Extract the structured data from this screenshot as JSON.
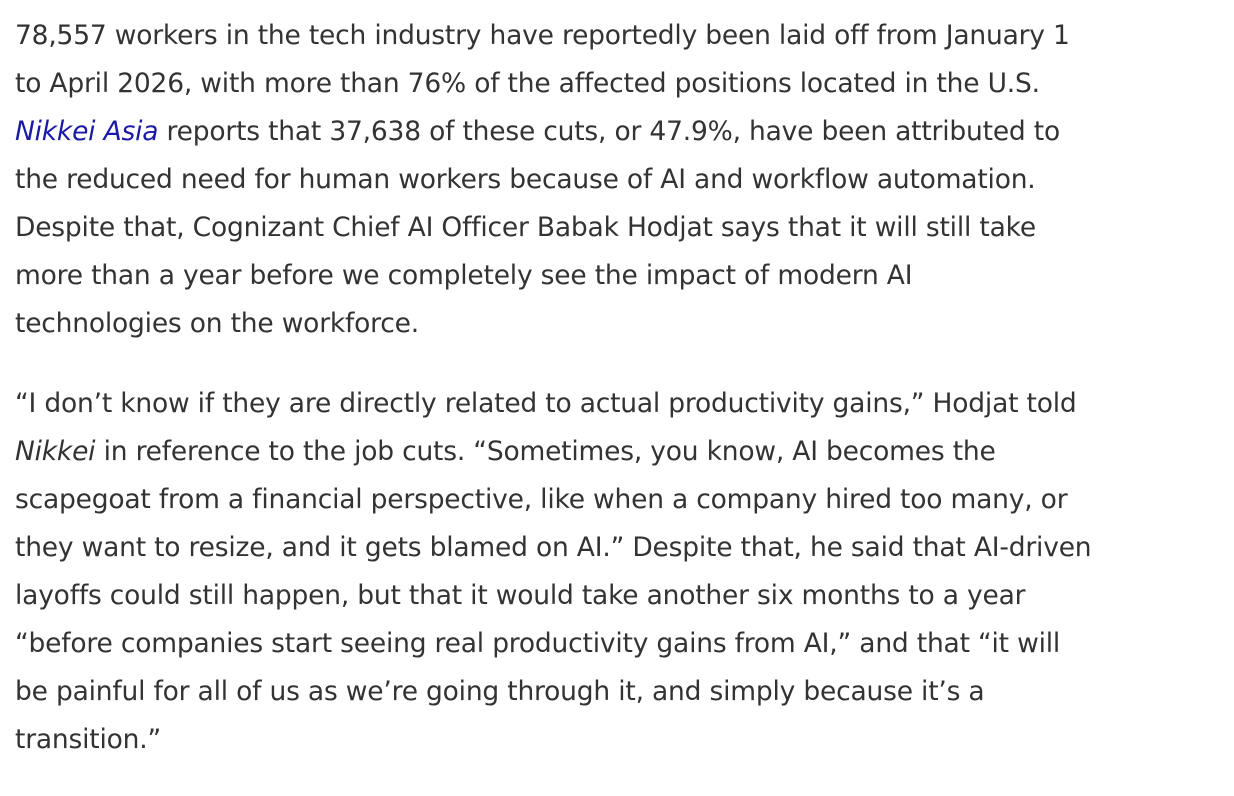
{
  "article": {
    "link_color": "#1a1aa6",
    "text_color": "#333333",
    "paragraphs": [
      {
        "lines": [
          [
            {
              "t": "text",
              "v": "78,557 workers in the tech industry have reportedly been laid off from January 1"
            }
          ],
          [
            {
              "t": "text",
              "v": "to April 2026, with more than 76% of the affected positions located in the U.S."
            }
          ],
          [
            {
              "t": "link",
              "v": "Nikkei Asia"
            },
            {
              "t": "text",
              "v": " reports that 37,638 of these cuts, or 47.9%, have been attributed to"
            }
          ],
          [
            {
              "t": "text",
              "v": "the reduced need for human workers because of AI and workflow automation."
            }
          ],
          [
            {
              "t": "text",
              "v": "Despite that, Cognizant Chief AI Officer Babak Hodjat says that it will still take"
            }
          ],
          [
            {
              "t": "text",
              "v": "more than a year before we completely see the impact of modern AI"
            }
          ],
          [
            {
              "t": "text",
              "v": "technologies on the workforce."
            }
          ]
        ]
      },
      {
        "lines": [
          [
            {
              "t": "text",
              "v": "“I don’t know if they are directly related to actual productivity gains,” Hodjat told"
            }
          ],
          [
            {
              "t": "em",
              "v": "Nikkei"
            },
            {
              "t": "text",
              "v": " in reference to the job cuts. “Sometimes, you know, AI becomes the"
            }
          ],
          [
            {
              "t": "text",
              "v": "scapegoat from a financial perspective, like when a company hired too many, or"
            }
          ],
          [
            {
              "t": "text",
              "v": "they want to resize, and it gets blamed on AI.” Despite that, he said that AI-driven"
            }
          ],
          [
            {
              "t": "text",
              "v": "layoffs could still happen, but that it would take another six months to a year"
            }
          ],
          [
            {
              "t": "text",
              "v": "“before companies start seeing real productivity gains from AI,” and that “it will"
            }
          ],
          [
            {
              "t": "text",
              "v": "be painful for all of us as we’re going through it, and simply because it’s a"
            }
          ],
          [
            {
              "t": "text",
              "v": "transition.”"
            }
          ]
        ]
      }
    ]
  }
}
